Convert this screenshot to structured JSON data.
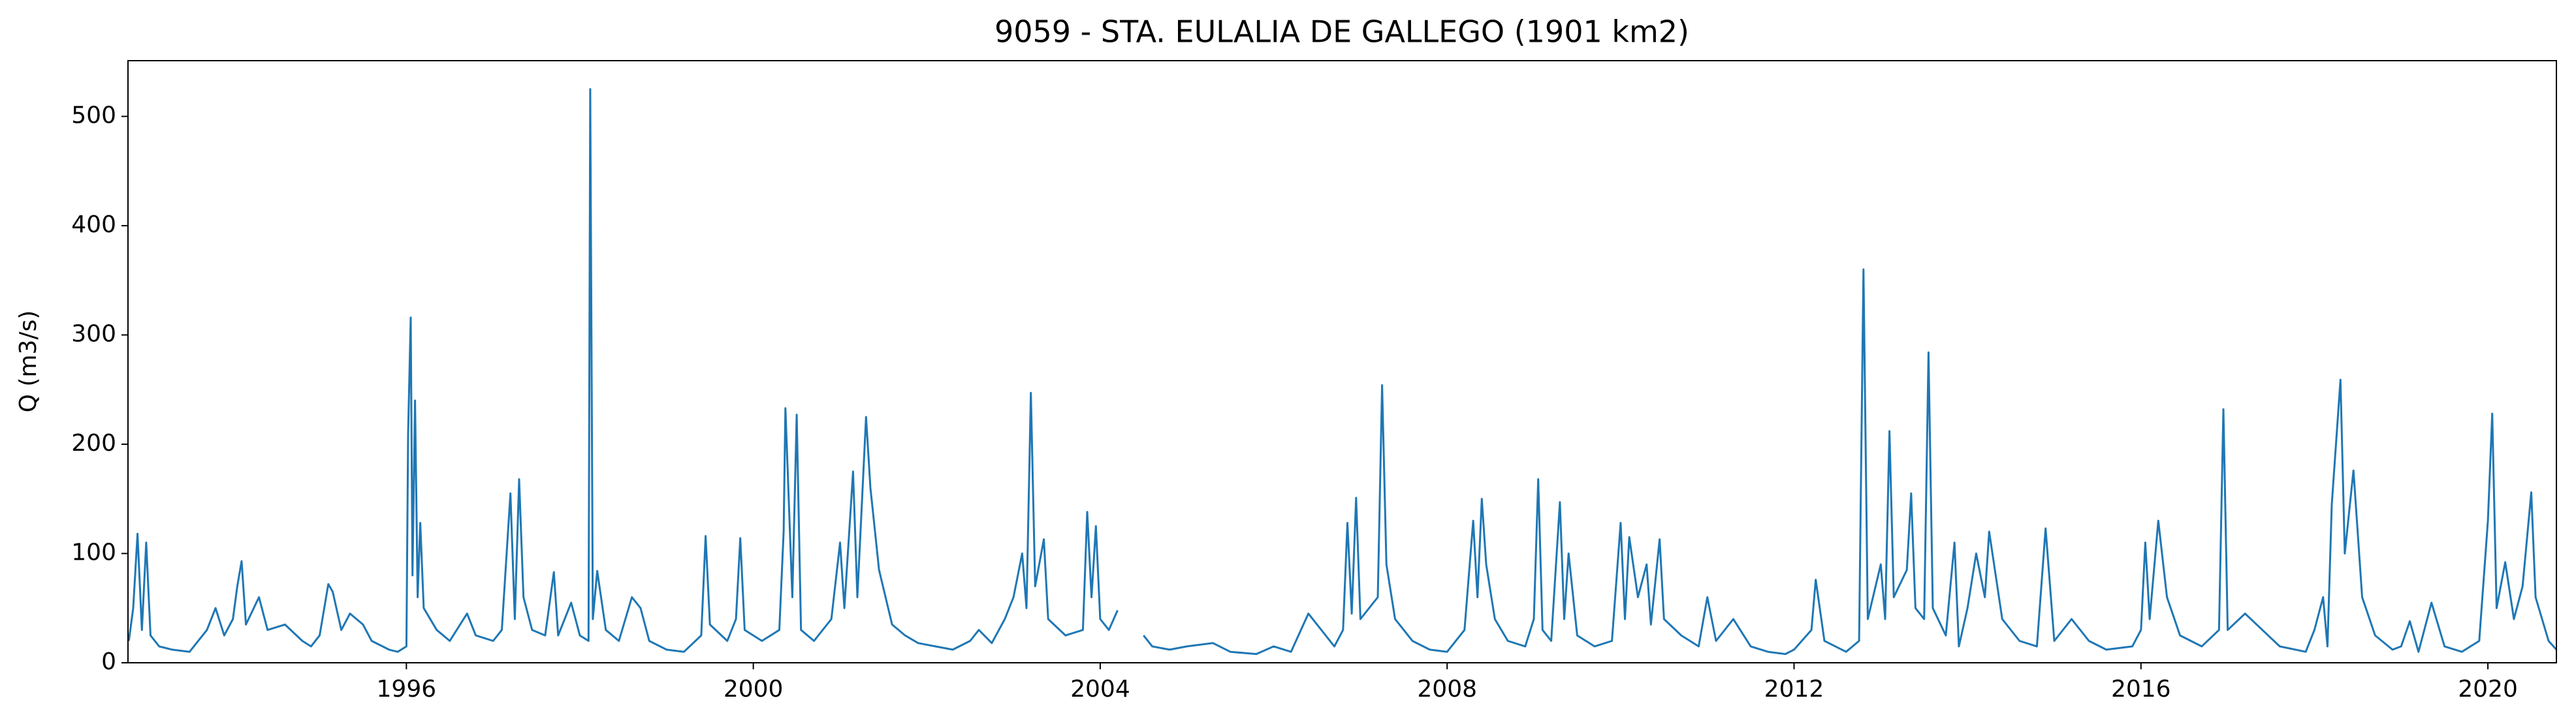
{
  "chart_data": {
    "type": "line",
    "title": "9059 - STA. EULALIA DE GALLEGO (1901 km2)",
    "ylabel": "Q (m3/s)",
    "color": "#1f77b4",
    "xlim": [
      1992.79,
      2020.79
    ],
    "xticks": [
      1996,
      2000,
      2004,
      2008,
      2012,
      2016,
      2020
    ],
    "ylim": [
      0,
      551
    ],
    "yticks": [
      0,
      100,
      200,
      300,
      400,
      500
    ],
    "grid": false,
    "x": [
      1992.8,
      1992.85,
      1992.9,
      1992.95,
      1993.0,
      1993.05,
      1993.15,
      1993.3,
      1993.5,
      1993.7,
      1993.8,
      1993.9,
      1994.0,
      1994.05,
      1994.1,
      1994.15,
      1994.3,
      1994.4,
      1994.6,
      1994.8,
      1994.9,
      1995.0,
      1995.1,
      1995.15,
      1995.25,
      1995.35,
      1995.5,
      1995.6,
      1995.8,
      1995.9,
      1996.0,
      1996.02,
      1996.05,
      1996.07,
      1996.1,
      1996.13,
      1996.16,
      1996.2,
      1996.35,
      1996.5,
      1996.7,
      1996.8,
      1997.0,
      1997.1,
      1997.2,
      1997.25,
      1997.3,
      1997.35,
      1997.45,
      1997.6,
      1997.7,
      1997.75,
      1997.9,
      1998.0,
      1998.1,
      1998.12,
      1998.15,
      1998.2,
      1998.3,
      1998.45,
      1998.6,
      1998.7,
      1998.8,
      1999.0,
      1999.2,
      1999.4,
      1999.45,
      1999.5,
      1999.7,
      1999.8,
      1999.85,
      1999.9,
      2000.1,
      2000.3,
      2000.35,
      2000.37,
      2000.45,
      2000.5,
      2000.55,
      2000.7,
      2000.9,
      2001.0,
      2001.05,
      2001.15,
      2001.2,
      2001.3,
      2001.35,
      2001.45,
      2001.6,
      2001.75,
      2001.9,
      2002.1,
      2002.3,
      2002.5,
      2002.6,
      2002.75,
      2002.9,
      2003.0,
      2003.1,
      2003.15,
      2003.2,
      2003.25,
      2003.35,
      2003.4,
      2003.6,
      2003.8,
      2003.85,
      2003.9,
      2003.95,
      2004.0,
      2004.1,
      2004.2,
      2004.3,
      2004.5,
      2004.6,
      2004.8,
      2005.0,
      2005.3,
      2005.5,
      2005.8,
      2006.0,
      2006.2,
      2006.4,
      2006.5,
      2006.7,
      2006.8,
      2006.85,
      2006.9,
      2006.95,
      2007.0,
      2007.2,
      2007.25,
      2007.3,
      2007.4,
      2007.6,
      2007.8,
      2008.0,
      2008.2,
      2008.3,
      2008.35,
      2008.4,
      2008.45,
      2008.55,
      2008.7,
      2008.9,
      2009.0,
      2009.05,
      2009.1,
      2009.2,
      2009.3,
      2009.35,
      2009.4,
      2009.5,
      2009.7,
      2009.9,
      2010.0,
      2010.05,
      2010.1,
      2010.2,
      2010.3,
      2010.35,
      2010.45,
      2010.5,
      2010.7,
      2010.9,
      2011.0,
      2011.1,
      2011.3,
      2011.5,
      2011.7,
      2011.9,
      2012.0,
      2012.2,
      2012.25,
      2012.35,
      2012.6,
      2012.75,
      2012.8,
      2012.85,
      2013.0,
      2013.05,
      2013.1,
      2013.15,
      2013.3,
      2013.35,
      2013.4,
      2013.5,
      2013.55,
      2013.6,
      2013.75,
      2013.85,
      2013.9,
      2014.0,
      2014.1,
      2014.2,
      2014.25,
      2014.4,
      2014.6,
      2014.8,
      2014.9,
      2015.0,
      2015.2,
      2015.4,
      2015.6,
      2015.9,
      2016.0,
      2016.05,
      2016.1,
      2016.2,
      2016.3,
      2016.45,
      2016.7,
      2016.9,
      2016.95,
      2017.0,
      2017.2,
      2017.4,
      2017.6,
      2017.9,
      2018.0,
      2018.1,
      2018.15,
      2018.2,
      2018.3,
      2018.35,
      2018.45,
      2018.55,
      2018.7,
      2018.9,
      2019.0,
      2019.1,
      2019.2,
      2019.35,
      2019.5,
      2019.7,
      2019.9,
      2020.0,
      2020.05,
      2020.1,
      2020.2,
      2020.3,
      2020.4,
      2020.5,
      2020.55,
      2020.7,
      2020.79
    ],
    "values": [
      20,
      50,
      118,
      30,
      110,
      25,
      15,
      12,
      10,
      30,
      50,
      25,
      40,
      70,
      93,
      35,
      60,
      30,
      35,
      20,
      15,
      25,
      72,
      65,
      30,
      45,
      35,
      20,
      12,
      10,
      15,
      210,
      316,
      80,
      240,
      60,
      128,
      50,
      30,
      20,
      45,
      25,
      20,
      30,
      155,
      40,
      168,
      60,
      30,
      25,
      83,
      25,
      55,
      25,
      20,
      525,
      40,
      84,
      30,
      20,
      60,
      50,
      20,
      12,
      10,
      25,
      116,
      35,
      20,
      40,
      114,
      30,
      20,
      30,
      120,
      233,
      60,
      227,
      30,
      20,
      40,
      110,
      50,
      175,
      60,
      225,
      160,
      85,
      35,
      25,
      18,
      15,
      12,
      20,
      30,
      18,
      40,
      60,
      100,
      50,
      247,
      70,
      113,
      40,
      25,
      30,
      138,
      60,
      125,
      40,
      30,
      48,
      null,
      25,
      15,
      12,
      15,
      18,
      10,
      8,
      15,
      10,
      45,
      35,
      15,
      30,
      128,
      45,
      151,
      40,
      60,
      254,
      90,
      40,
      20,
      12,
      10,
      30,
      130,
      60,
      150,
      90,
      40,
      20,
      15,
      40,
      168,
      30,
      20,
      147,
      40,
      100,
      25,
      15,
      20,
      128,
      40,
      115,
      60,
      90,
      35,
      113,
      40,
      25,
      15,
      60,
      20,
      40,
      15,
      10,
      8,
      12,
      30,
      76,
      20,
      10,
      20,
      360,
      40,
      90,
      40,
      212,
      60,
      85,
      155,
      50,
      40,
      284,
      50,
      25,
      110,
      15,
      50,
      100,
      60,
      120,
      40,
      20,
      15,
      123,
      20,
      40,
      20,
      12,
      15,
      30,
      110,
      40,
      130,
      60,
      25,
      15,
      30,
      232,
      30,
      45,
      30,
      15,
      10,
      30,
      60,
      15,
      145,
      259,
      100,
      176,
      60,
      25,
      12,
      15,
      38,
      10,
      55,
      15,
      10,
      20,
      130,
      228,
      50,
      92,
      40,
      70,
      156,
      60,
      20,
      12
    ]
  }
}
